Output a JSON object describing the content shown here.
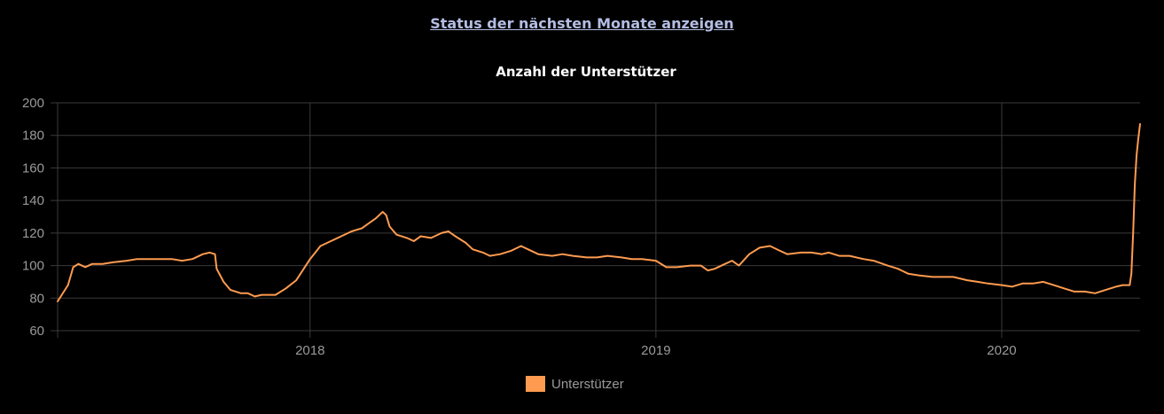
{
  "header": {
    "link_text": "Status der nächsten Monate anzeigen"
  },
  "colors": {
    "series": "#ff9b50",
    "background": "#000000",
    "grid": "#3a3a3a",
    "tick": "#9a9a9a",
    "title": "#ffffff",
    "link": "#b4bde3"
  },
  "chart_data": {
    "type": "line",
    "title": "Anzahl der Unterstützer",
    "xlabel": "",
    "ylabel": "",
    "ylim": [
      60,
      200
    ],
    "yticks": [
      60,
      80,
      100,
      120,
      140,
      160,
      180,
      200
    ],
    "xlim": [
      2017.27,
      2020.4
    ],
    "xticks": [
      {
        "value": 2018,
        "label": "2018"
      },
      {
        "value": 2019,
        "label": "2019"
      },
      {
        "value": 2020,
        "label": "2020"
      }
    ],
    "grid": true,
    "legend_position": "bottom",
    "series": [
      {
        "name": "Unterstützer",
        "color": "#ff9b50",
        "points": [
          [
            2017.27,
            78
          ],
          [
            2017.3,
            88
          ],
          [
            2017.315,
            99
          ],
          [
            2017.33,
            101
          ],
          [
            2017.35,
            99
          ],
          [
            2017.37,
            101
          ],
          [
            2017.4,
            101
          ],
          [
            2017.43,
            102
          ],
          [
            2017.47,
            103
          ],
          [
            2017.5,
            104
          ],
          [
            2017.53,
            104
          ],
          [
            2017.57,
            104
          ],
          [
            2017.6,
            104
          ],
          [
            2017.63,
            103
          ],
          [
            2017.66,
            104
          ],
          [
            2017.69,
            107
          ],
          [
            2017.71,
            108
          ],
          [
            2017.725,
            107
          ],
          [
            2017.73,
            98
          ],
          [
            2017.75,
            90
          ],
          [
            2017.77,
            85
          ],
          [
            2017.8,
            83
          ],
          [
            2017.82,
            83
          ],
          [
            2017.84,
            81
          ],
          [
            2017.86,
            82
          ],
          [
            2017.9,
            82
          ],
          [
            2017.93,
            86
          ],
          [
            2017.96,
            91
          ],
          [
            2018.0,
            104
          ],
          [
            2018.03,
            112
          ],
          [
            2018.06,
            115
          ],
          [
            2018.09,
            118
          ],
          [
            2018.12,
            121
          ],
          [
            2018.15,
            123
          ],
          [
            2018.17,
            126
          ],
          [
            2018.19,
            129
          ],
          [
            2018.21,
            133
          ],
          [
            2018.22,
            131
          ],
          [
            2018.23,
            124
          ],
          [
            2018.25,
            119
          ],
          [
            2018.28,
            117
          ],
          [
            2018.3,
            115
          ],
          [
            2018.32,
            118
          ],
          [
            2018.35,
            117
          ],
          [
            2018.38,
            120
          ],
          [
            2018.4,
            121
          ],
          [
            2018.42,
            118
          ],
          [
            2018.45,
            114
          ],
          [
            2018.47,
            110
          ],
          [
            2018.5,
            108
          ],
          [
            2018.52,
            106
          ],
          [
            2018.55,
            107
          ],
          [
            2018.58,
            109
          ],
          [
            2018.61,
            112
          ],
          [
            2018.63,
            110
          ],
          [
            2018.66,
            107
          ],
          [
            2018.7,
            106
          ],
          [
            2018.73,
            107
          ],
          [
            2018.76,
            106
          ],
          [
            2018.8,
            105
          ],
          [
            2018.83,
            105
          ],
          [
            2018.86,
            106
          ],
          [
            2018.9,
            105
          ],
          [
            2018.93,
            104
          ],
          [
            2018.96,
            104
          ],
          [
            2019.0,
            103
          ],
          [
            2019.03,
            99
          ],
          [
            2019.06,
            99
          ],
          [
            2019.1,
            100
          ],
          [
            2019.13,
            100
          ],
          [
            2019.15,
            97
          ],
          [
            2019.17,
            98
          ],
          [
            2019.2,
            101
          ],
          [
            2019.22,
            103
          ],
          [
            2019.24,
            100
          ],
          [
            2019.27,
            107
          ],
          [
            2019.3,
            111
          ],
          [
            2019.33,
            112
          ],
          [
            2019.36,
            109
          ],
          [
            2019.38,
            107
          ],
          [
            2019.42,
            108
          ],
          [
            2019.45,
            108
          ],
          [
            2019.48,
            107
          ],
          [
            2019.5,
            108
          ],
          [
            2019.53,
            106
          ],
          [
            2019.56,
            106
          ],
          [
            2019.6,
            104
          ],
          [
            2019.63,
            103
          ],
          [
            2019.67,
            100
          ],
          [
            2019.7,
            98
          ],
          [
            2019.73,
            95
          ],
          [
            2019.76,
            94
          ],
          [
            2019.8,
            93
          ],
          [
            2019.83,
            93
          ],
          [
            2019.86,
            93
          ],
          [
            2019.9,
            91
          ],
          [
            2019.93,
            90
          ],
          [
            2019.96,
            89
          ],
          [
            2020.0,
            88
          ],
          [
            2020.03,
            87
          ],
          [
            2020.06,
            89
          ],
          [
            2020.09,
            89
          ],
          [
            2020.12,
            90
          ],
          [
            2020.15,
            88
          ],
          [
            2020.18,
            86
          ],
          [
            2020.21,
            84
          ],
          [
            2020.24,
            84
          ],
          [
            2020.27,
            83
          ],
          [
            2020.3,
            85
          ],
          [
            2020.33,
            87
          ],
          [
            2020.35,
            88
          ],
          [
            2020.37,
            88
          ],
          [
            2020.375,
            95
          ],
          [
            2020.38,
            120
          ],
          [
            2020.385,
            150
          ],
          [
            2020.39,
            168
          ],
          [
            2020.395,
            178
          ],
          [
            2020.4,
            187
          ]
        ]
      }
    ]
  }
}
